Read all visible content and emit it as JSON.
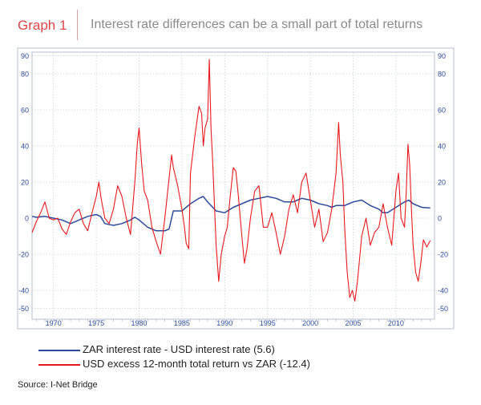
{
  "header": {
    "label": "Graph 1",
    "title": "Interest rate differences can be a small part of total returns"
  },
  "colors": {
    "zar": "#2a4b9b",
    "usd": "#e8191e",
    "axis": "#2a4b9b",
    "frame": "#b5bccf",
    "grid": "#c9cfdc"
  },
  "source": "Source: I-Net Bridge",
  "chart_data": {
    "type": "line",
    "title": "Interest rate differences can be a small part of total returns",
    "xlim": [
      1967.5,
      2014.5
    ],
    "ylim": [
      -56,
      92
    ],
    "y_ticks": [
      90,
      80,
      60,
      40,
      20,
      0,
      -20,
      -40,
      -50
    ],
    "x_ticks": [
      1970,
      1975,
      1980,
      1985,
      1990,
      1995,
      2000,
      2005,
      2010
    ],
    "x_tick_labels": [
      "1970",
      "1975",
      "1980",
      "1985",
      "1990",
      "1995",
      "2000",
      "2005",
      "2010"
    ],
    "legend_position": "bottom",
    "grid": true,
    "series": [
      {
        "name": "ZAR interest rate - USD interest rate (5.6)",
        "key": "zar",
        "points": [
          [
            1967.5,
            1
          ],
          [
            1968,
            0.5
          ],
          [
            1969,
            1
          ],
          [
            1970,
            0
          ],
          [
            1971,
            -1
          ],
          [
            1972,
            -3
          ],
          [
            1973,
            -1
          ],
          [
            1974,
            1
          ],
          [
            1975,
            2
          ],
          [
            1975.5,
            1
          ],
          [
            1976,
            -3
          ],
          [
            1977,
            -4
          ],
          [
            1978,
            -3
          ],
          [
            1979,
            -1
          ],
          [
            1979.5,
            0.5
          ],
          [
            1980,
            -1
          ],
          [
            1981,
            -5
          ],
          [
            1982,
            -7
          ],
          [
            1983,
            -7
          ],
          [
            1983.5,
            -6
          ],
          [
            1984,
            4
          ],
          [
            1985,
            4
          ],
          [
            1986,
            8
          ],
          [
            1987,
            11
          ],
          [
            1987.5,
            12
          ],
          [
            1988,
            9
          ],
          [
            1989,
            4
          ],
          [
            1990,
            3
          ],
          [
            1991,
            6
          ],
          [
            1992,
            8
          ],
          [
            1993,
            10
          ],
          [
            1994,
            11
          ],
          [
            1995,
            12
          ],
          [
            1996,
            11
          ],
          [
            1997,
            9
          ],
          [
            1998,
            9
          ],
          [
            1998.5,
            10
          ],
          [
            1999,
            11
          ],
          [
            2000,
            10
          ],
          [
            2001,
            8
          ],
          [
            2002,
            7
          ],
          [
            2002.5,
            6
          ],
          [
            2003,
            7
          ],
          [
            2004,
            7
          ],
          [
            2005,
            9
          ],
          [
            2006,
            10
          ],
          [
            2007,
            7
          ],
          [
            2008,
            5
          ],
          [
            2008.5,
            3
          ],
          [
            2009,
            3
          ],
          [
            2010,
            6
          ],
          [
            2011,
            9
          ],
          [
            2011.5,
            10
          ],
          [
            2012,
            8
          ],
          [
            2013,
            6
          ],
          [
            2014,
            5.6
          ]
        ]
      },
      {
        "name": "USD excess 12-month total return vs ZAR (-12.4)",
        "key": "usd",
        "points": [
          [
            1967.5,
            -8
          ],
          [
            1968,
            -2
          ],
          [
            1968.5,
            3
          ],
          [
            1969,
            9
          ],
          [
            1969.5,
            0
          ],
          [
            1970,
            -1
          ],
          [
            1970.5,
            0
          ],
          [
            1971,
            -6
          ],
          [
            1971.5,
            -9
          ],
          [
            1972,
            -2
          ],
          [
            1972.5,
            3
          ],
          [
            1973,
            5
          ],
          [
            1973.5,
            -3
          ],
          [
            1974,
            -7
          ],
          [
            1974.5,
            3
          ],
          [
            1975,
            12
          ],
          [
            1975.3,
            20
          ],
          [
            1975.6,
            10
          ],
          [
            1976,
            0
          ],
          [
            1976.5,
            -3
          ],
          [
            1977,
            5
          ],
          [
            1977.5,
            18
          ],
          [
            1978,
            12
          ],
          [
            1978.5,
            0
          ],
          [
            1979,
            -9
          ],
          [
            1979.5,
            20
          ],
          [
            1979.8,
            42
          ],
          [
            1980,
            50
          ],
          [
            1980.3,
            30
          ],
          [
            1980.6,
            15
          ],
          [
            1981,
            10
          ],
          [
            1981.5,
            -5
          ],
          [
            1982,
            -13
          ],
          [
            1982.5,
            -20
          ],
          [
            1983,
            0
          ],
          [
            1983.5,
            22
          ],
          [
            1983.8,
            35
          ],
          [
            1984,
            28
          ],
          [
            1984.5,
            18
          ],
          [
            1985,
            5
          ],
          [
            1985.3,
            -5
          ],
          [
            1985.5,
            -14
          ],
          [
            1985.8,
            -17
          ],
          [
            1986,
            25
          ],
          [
            1986.5,
            45
          ],
          [
            1987,
            62
          ],
          [
            1987.3,
            58
          ],
          [
            1987.5,
            40
          ],
          [
            1987.7,
            50
          ],
          [
            1988,
            55
          ],
          [
            1988.2,
            88
          ],
          [
            1988.4,
            50
          ],
          [
            1988.6,
            30
          ],
          [
            1989,
            -15
          ],
          [
            1989.3,
            -35
          ],
          [
            1989.6,
            -20
          ],
          [
            1990,
            -10
          ],
          [
            1990.3,
            -5
          ],
          [
            1990.6,
            10
          ],
          [
            1991,
            28
          ],
          [
            1991.3,
            26
          ],
          [
            1991.6,
            12
          ],
          [
            1992,
            -10
          ],
          [
            1992.3,
            -25
          ],
          [
            1992.6,
            -17
          ],
          [
            1993,
            0
          ],
          [
            1993.5,
            15
          ],
          [
            1994,
            18
          ],
          [
            1994.5,
            -5
          ],
          [
            1995,
            -5
          ],
          [
            1995.5,
            3
          ],
          [
            1996,
            -8
          ],
          [
            1996.5,
            -20
          ],
          [
            1997,
            -10
          ],
          [
            1997.5,
            5
          ],
          [
            1998,
            13
          ],
          [
            1998.5,
            3
          ],
          [
            1999,
            20
          ],
          [
            1999.5,
            25
          ],
          [
            2000,
            10
          ],
          [
            2000.5,
            -5
          ],
          [
            2001,
            5
          ],
          [
            2001.5,
            -13
          ],
          [
            2002,
            -8
          ],
          [
            2002.5,
            5
          ],
          [
            2003,
            25
          ],
          [
            2003.3,
            53
          ],
          [
            2003.5,
            35
          ],
          [
            2003.8,
            20
          ],
          [
            2004,
            -5
          ],
          [
            2004.3,
            -30
          ],
          [
            2004.6,
            -44
          ],
          [
            2004.9,
            -40
          ],
          [
            2005.2,
            -46
          ],
          [
            2005.5,
            -35
          ],
          [
            2006,
            -10
          ],
          [
            2006.5,
            0
          ],
          [
            2007,
            -15
          ],
          [
            2007.5,
            -8
          ],
          [
            2008,
            -5
          ],
          [
            2008.5,
            8
          ],
          [
            2009,
            -5
          ],
          [
            2009.5,
            -15
          ],
          [
            2010,
            15
          ],
          [
            2010.3,
            25
          ],
          [
            2010.6,
            0
          ],
          [
            2011,
            -5
          ],
          [
            2011.2,
            15
          ],
          [
            2011.4,
            41
          ],
          [
            2011.6,
            30
          ],
          [
            2011.8,
            5
          ],
          [
            2012,
            -15
          ],
          [
            2012.3,
            -30
          ],
          [
            2012.6,
            -35
          ],
          [
            2012.9,
            -25
          ],
          [
            2013.2,
            -12
          ],
          [
            2013.6,
            -16
          ],
          [
            2014,
            -12.4
          ]
        ]
      }
    ]
  }
}
